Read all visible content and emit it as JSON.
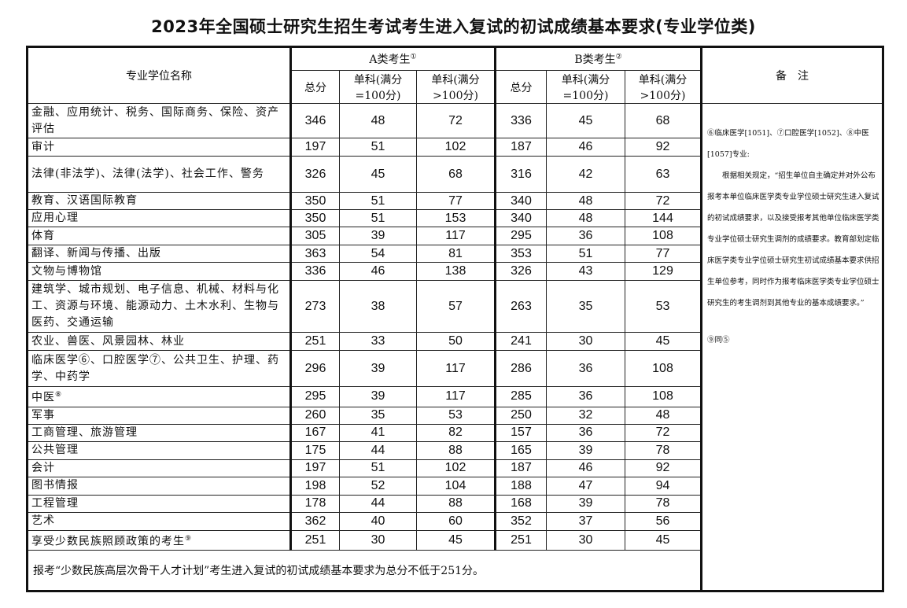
{
  "title": "2023年全国硕士研究生招生考试考生进入复试的初试成绩基本要求(专业学位类)",
  "header": {
    "name_col": "专业学位名称",
    "group_a": "A类考生",
    "group_a_sup": "①",
    "group_b": "B类考生",
    "group_b_sup": "②",
    "total": "总分",
    "single100_l1": "单科(满分",
    "single100_l2": "=100分)",
    "singleover_l1": "单科(满分",
    "singleover_l2": ">100分)",
    "remarks": "备　注"
  },
  "rows": [
    {
      "name": "金融、应用统计、税务、国际商务、保险、资产评估",
      "sup": "",
      "a": [
        "346",
        "48",
        "72"
      ],
      "b": [
        "336",
        "45",
        "68"
      ]
    },
    {
      "name": "审计",
      "sup": "",
      "a": [
        "197",
        "51",
        "102"
      ],
      "b": [
        "187",
        "46",
        "92"
      ]
    },
    {
      "name": "法律(非法学)、法律(法学)、社会工作、警务",
      "sup": "",
      "a": [
        "326",
        "45",
        "68"
      ],
      "b": [
        "316",
        "42",
        "63"
      ]
    },
    {
      "name": "教育、汉语国际教育",
      "sup": "",
      "a": [
        "350",
        "51",
        "77"
      ],
      "b": [
        "340",
        "48",
        "72"
      ]
    },
    {
      "name": "应用心理",
      "sup": "",
      "a": [
        "350",
        "51",
        "153"
      ],
      "b": [
        "340",
        "48",
        "144"
      ]
    },
    {
      "name": "体育",
      "sup": "",
      "a": [
        "305",
        "39",
        "117"
      ],
      "b": [
        "295",
        "36",
        "108"
      ]
    },
    {
      "name": "翻译、新闻与传播、出版",
      "sup": "",
      "a": [
        "363",
        "54",
        "81"
      ],
      "b": [
        "353",
        "51",
        "77"
      ]
    },
    {
      "name": "文物与博物馆",
      "sup": "",
      "a": [
        "336",
        "46",
        "138"
      ],
      "b": [
        "326",
        "43",
        "129"
      ]
    },
    {
      "name": "建筑学、城市规划、电子信息、机械、材料与化工、资源与环境、能源动力、土木水利、生物与医药、交通运输",
      "sup": "",
      "a": [
        "273",
        "38",
        "57"
      ],
      "b": [
        "263",
        "35",
        "53"
      ]
    },
    {
      "name": "农业、兽医、风景园林、林业",
      "sup": "",
      "a": [
        "251",
        "33",
        "50"
      ],
      "b": [
        "241",
        "30",
        "45"
      ]
    },
    {
      "name": "临床医学⑥、口腔医学⑦、公共卫生、护理、药学、中药学",
      "sup": "",
      "a": [
        "296",
        "39",
        "117"
      ],
      "b": [
        "286",
        "36",
        "108"
      ]
    },
    {
      "name": "中医",
      "sup": "⑧",
      "a": [
        "295",
        "39",
        "117"
      ],
      "b": [
        "285",
        "36",
        "108"
      ]
    },
    {
      "name": "军事",
      "sup": "",
      "a": [
        "260",
        "35",
        "53"
      ],
      "b": [
        "250",
        "32",
        "48"
      ]
    },
    {
      "name": "工商管理、旅游管理",
      "sup": "",
      "a": [
        "167",
        "41",
        "82"
      ],
      "b": [
        "157",
        "36",
        "72"
      ]
    },
    {
      "name": "公共管理",
      "sup": "",
      "a": [
        "175",
        "44",
        "88"
      ],
      "b": [
        "165",
        "39",
        "78"
      ]
    },
    {
      "name": "会计",
      "sup": "",
      "a": [
        "197",
        "51",
        "102"
      ],
      "b": [
        "187",
        "46",
        "92"
      ]
    },
    {
      "name": "图书情报",
      "sup": "",
      "a": [
        "198",
        "52",
        "104"
      ],
      "b": [
        "188",
        "47",
        "94"
      ]
    },
    {
      "name": "工程管理",
      "sup": "",
      "a": [
        "178",
        "44",
        "88"
      ],
      "b": [
        "168",
        "39",
        "78"
      ]
    },
    {
      "name": "艺术",
      "sup": "",
      "a": [
        "362",
        "40",
        "60"
      ],
      "b": [
        "352",
        "37",
        "56"
      ]
    },
    {
      "name": "享受少数民族照顾政策的考生",
      "sup": "⑨",
      "a": [
        "251",
        "30",
        "45"
      ],
      "b": [
        "251",
        "30",
        "45"
      ]
    }
  ],
  "remarks": {
    "p1": "⑥临床医学[1051]、⑦口腔医学[1052]、⑧中医[1057]专业:",
    "p2": "根据相关规定，“招生单位自主确定并对外公布报考本单位临床医学类专业学位硕士研究生进入复试的初试成绩要求，以及接受报考其他单位临床医学类专业学位硕士研究生调剂的成绩要求。教育部划定临床医学类专业学位硕士研究生初试成绩基本要求供招生单位参考，同时作为报考临床医学类专业学位硕士研究生的考生调剂到其他专业的基本成绩要求。”",
    "p3": "⑨同⑤"
  },
  "footer": "报考“少数民族高层次骨干人才计划”考生进入复试的初试成绩基本要求为总分不低于251分。"
}
